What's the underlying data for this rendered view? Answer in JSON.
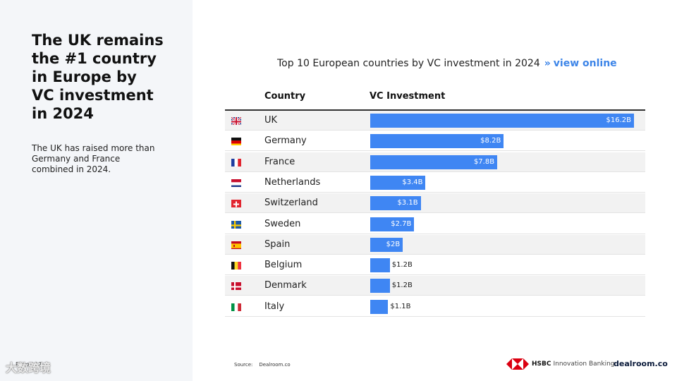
{
  "sidebar": {
    "headline_lines": [
      "The UK remains",
      "the #1 country",
      "in Europe by",
      "VC investment",
      "in 2024"
    ],
    "subtext_lines": [
      "The UK has raised more than",
      "Germany and France",
      "combined in 2024."
    ],
    "page_number": "Page / 17",
    "watermark": "大数跨境"
  },
  "chart_header": {
    "title": "Top 10 European countries by VC investment in 2024",
    "chevron": "»",
    "link": "view online"
  },
  "columns": {
    "country": "Country",
    "value": "VC Investment"
  },
  "chart_data": {
    "type": "bar",
    "orientation": "horizontal",
    "title": "Top 10 European countries by VC investment in 2024",
    "unit": "$B",
    "categories": [
      "UK",
      "Germany",
      "France",
      "Netherlands",
      "Switzerland",
      "Sweden",
      "Spain",
      "Belgium",
      "Denmark",
      "Italy"
    ],
    "values": [
      16.2,
      8.2,
      7.8,
      3.4,
      3.1,
      2.7,
      2,
      1.2,
      1.2,
      1.1
    ],
    "labels": [
      "$16.2B",
      "$8.2B",
      "$7.8B",
      "$3.4B",
      "$3.1B",
      "$2.7B",
      "$2B",
      "$1.2B",
      "$1.2B",
      "$1.1B"
    ],
    "flags": [
      "uk-flag-icon",
      "germany-flag-icon",
      "france-flag-icon",
      "netherlands-flag-icon",
      "switzerland-flag-icon",
      "sweden-flag-icon",
      "spain-flag-icon",
      "belgium-flag-icon",
      "denmark-flag-icon",
      "italy-flag-icon"
    ],
    "xlim": [
      0,
      16.2
    ],
    "bar_color": "#3f86f3"
  },
  "footer": {
    "source_label": "Source:",
    "source_value": "Dealroom.co",
    "hsbc_name": "HSBC",
    "hsbc_sub": "Innovation Banking",
    "dealroom": "dealroom.co"
  },
  "colors": {
    "accent": "#3d85e8",
    "panel": "#f4f6f9",
    "hsbc_red": "#db0011"
  }
}
